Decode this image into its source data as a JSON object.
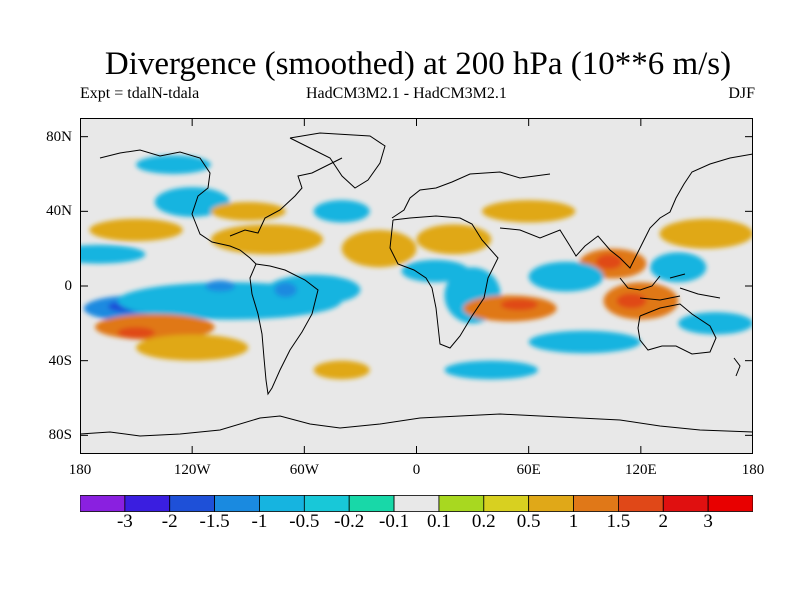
{
  "title": "Divergence (smoothed) at 200 hPa (10**6 m/s)",
  "experiment": "Expt = tdalN-tdala",
  "models": "HadCM3M2.1 - HadCM3M2.1",
  "season": "DJF",
  "map": {
    "projection": "cylindrical equidistant",
    "lon_range": [
      -180,
      180
    ],
    "lat_range": [
      -90,
      90
    ],
    "y_ticks": [
      {
        "value": 80,
        "label": "80N"
      },
      {
        "value": 40,
        "label": "40N"
      },
      {
        "value": 0,
        "label": "0"
      },
      {
        "value": -40,
        "label": "40S"
      },
      {
        "value": -80,
        "label": "80S"
      }
    ],
    "x_ticks": [
      {
        "value": -180,
        "label": "180"
      },
      {
        "value": -120,
        "label": "120W"
      },
      {
        "value": -60,
        "label": "60W"
      },
      {
        "value": 0,
        "label": "0"
      },
      {
        "value": 60,
        "label": "60E"
      },
      {
        "value": 120,
        "label": "120E"
      },
      {
        "value": 180,
        "label": "180"
      }
    ],
    "background_color": "#e8e8e8",
    "coastline_color": "#000000"
  },
  "colorbar": {
    "labels": [
      "-3",
      "-2",
      "-1.5",
      "-1",
      "-0.5",
      "-0.2",
      "-0.1",
      "0.1",
      "0.2",
      "0.5",
      "1",
      "1.5",
      "2",
      "3"
    ],
    "colors": [
      "#8a20e0",
      "#3a1ee0",
      "#1e50d8",
      "#1a8ae0",
      "#16b4e0",
      "#18c8d8",
      "#18d8a8",
      "#e8e8e8",
      "#a8d820",
      "#d8d020",
      "#e0a818",
      "#e07818",
      "#e04818",
      "#e01010",
      "#e80000"
    ]
  },
  "regions": [
    {
      "level": "-1",
      "lon": -150,
      "lat": -12,
      "rlon": 28,
      "rlat": 7
    },
    {
      "level": "-1.5",
      "lon": -155,
      "lat": -11,
      "rlon": 10,
      "rlat": 3
    },
    {
      "level": "-2",
      "lon": -155,
      "lat": -10,
      "rlon": 4,
      "rlat": 1.5
    },
    {
      "level": "-0.5",
      "lon": -100,
      "lat": -8,
      "rlon": 60,
      "rlat": 10
    },
    {
      "level": "-0.5",
      "lon": -55,
      "lat": -2,
      "rlon": 25,
      "rlat": 8
    },
    {
      "level": "-1",
      "lon": -70,
      "lat": -2,
      "rlon": 6,
      "rlat": 4
    },
    {
      "level": "-1",
      "lon": -105,
      "lat": 0,
      "rlon": 8,
      "rlat": 3
    },
    {
      "level": "1",
      "lon": -140,
      "lat": -22,
      "rlon": 32,
      "rlat": 7
    },
    {
      "level": "1.5",
      "lon": -150,
      "lat": -25,
      "rlon": 10,
      "rlat": 3
    },
    {
      "level": "0.5",
      "lon": -120,
      "lat": -33,
      "rlon": 30,
      "rlat": 7
    },
    {
      "level": "0.5",
      "lon": -150,
      "lat": 30,
      "rlon": 25,
      "rlat": 6
    },
    {
      "level": "0.5",
      "lon": -80,
      "lat": 25,
      "rlon": 30,
      "rlat": 8
    },
    {
      "level": "-0.5",
      "lon": -170,
      "lat": 17,
      "rlon": 25,
      "rlat": 5
    },
    {
      "level": "-0.5",
      "lon": -120,
      "lat": 45,
      "rlon": 20,
      "rlat": 8
    },
    {
      "level": "-0.5",
      "lon": -40,
      "lat": 40,
      "rlon": 15,
      "rlat": 6
    },
    {
      "level": "0.5",
      "lon": -20,
      "lat": 20,
      "rlon": 20,
      "rlat": 10
    },
    {
      "level": "0.5",
      "lon": 20,
      "lat": 25,
      "rlon": 20,
      "rlat": 8
    },
    {
      "level": "-0.5",
      "lon": 10,
      "lat": 8,
      "rlon": 18,
      "rlat": 6
    },
    {
      "level": "-0.5",
      "lon": 30,
      "lat": -5,
      "rlon": 15,
      "rlat": 15
    },
    {
      "level": "1",
      "lon": 50,
      "lat": -12,
      "rlon": 25,
      "rlat": 7
    },
    {
      "level": "1.5",
      "lon": 55,
      "lat": -10,
      "rlon": 10,
      "rlat": 3
    },
    {
      "level": "1",
      "lon": 105,
      "lat": 12,
      "rlon": 18,
      "rlat": 8
    },
    {
      "level": "1.5",
      "lon": 103,
      "lat": 13,
      "rlon": 7,
      "rlat": 4
    },
    {
      "level": "1",
      "lon": 120,
      "lat": -8,
      "rlon": 20,
      "rlat": 10
    },
    {
      "level": "1.5",
      "lon": 115,
      "lat": -8,
      "rlon": 8,
      "rlat": 4
    },
    {
      "level": "0.5",
      "lon": 155,
      "lat": 28,
      "rlon": 25,
      "rlat": 8
    },
    {
      "level": "-0.5",
      "lon": 80,
      "lat": 5,
      "rlon": 20,
      "rlat": 8
    },
    {
      "level": "-0.5",
      "lon": 140,
      "lat": 10,
      "rlon": 15,
      "rlat": 8
    },
    {
      "level": "-0.5",
      "lon": 90,
      "lat": -30,
      "rlon": 30,
      "rlat": 6
    },
    {
      "level": "-0.5",
      "lon": 160,
      "lat": -20,
      "rlon": 20,
      "rlat": 6
    },
    {
      "level": "0.5",
      "lon": 60,
      "lat": 40,
      "rlon": 25,
      "rlat": 6
    },
    {
      "level": "-0.5",
      "lon": -130,
      "lat": 65,
      "rlon": 20,
      "rlat": 5
    },
    {
      "level": "-0.5",
      "lon": 40,
      "lat": -45,
      "rlon": 25,
      "rlat": 5
    },
    {
      "level": "0.5",
      "lon": -40,
      "lat": -45,
      "rlon": 15,
      "rlat": 5
    },
    {
      "level": "0.5",
      "lon": -90,
      "lat": 40,
      "rlon": 20,
      "rlat": 5
    }
  ]
}
